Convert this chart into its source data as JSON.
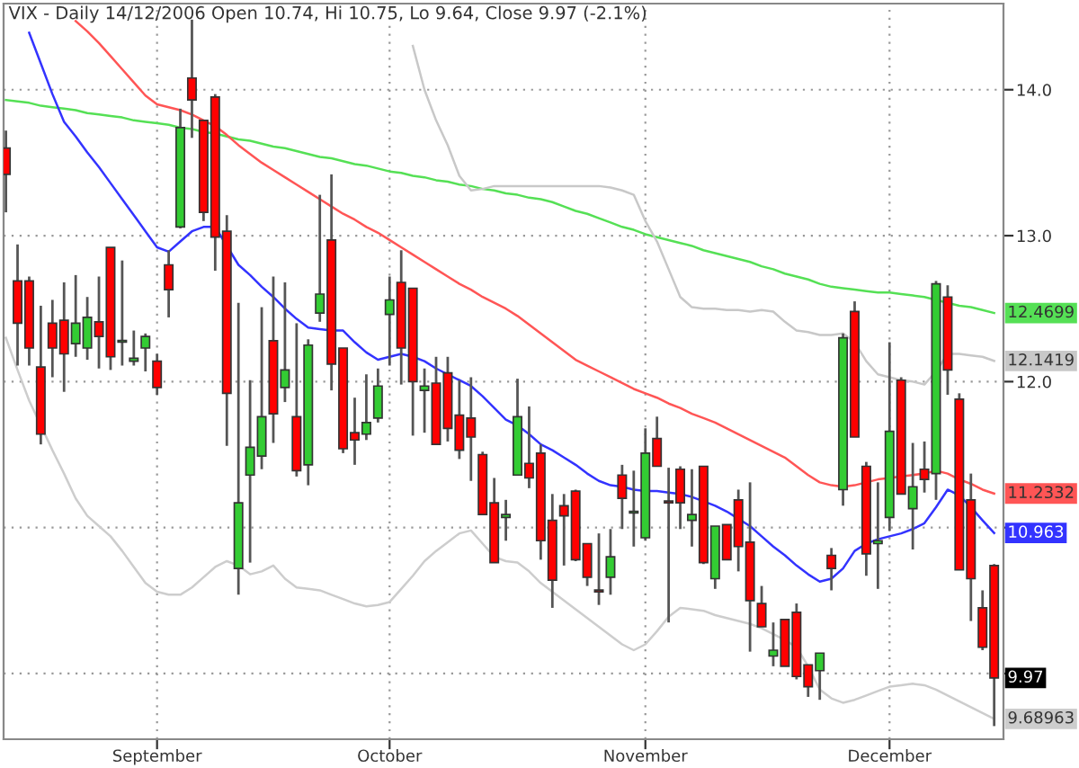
{
  "chart_data": {
    "type": "candlestick",
    "title": "VIX - Daily 14/12/2006 Open 10.74, Hi 10.75, Lo 9.64, Close 9.97 (-2.1%)",
    "categories": [
      null,
      null,
      null,
      null,
      null,
      null,
      null,
      null,
      null,
      null,
      null,
      null,
      null,
      "September",
      null,
      null,
      null,
      null,
      null,
      null,
      null,
      null,
      null,
      null,
      null,
      null,
      null,
      null,
      null,
      null,
      null,
      null,
      null,
      "October",
      null,
      null,
      null,
      null,
      null,
      null,
      null,
      null,
      null,
      null,
      null,
      null,
      null,
      null,
      null,
      null,
      null,
      null,
      null,
      null,
      null,
      "November",
      null,
      null,
      null,
      null,
      null,
      null,
      null,
      null,
      null,
      null,
      null,
      null,
      null,
      null,
      null,
      null,
      null,
      null,
      null,
      null,
      "December",
      null,
      null,
      null,
      null,
      null,
      null,
      null,
      null,
      null
    ],
    "ohlc": [
      [
        13.6,
        13.72,
        13.16,
        13.42
      ],
      [
        12.69,
        12.94,
        12.11,
        12.4
      ],
      [
        12.69,
        12.72,
        12.11,
        12.23
      ],
      [
        12.1,
        12.52,
        11.57,
        11.64
      ],
      [
        12.4,
        12.56,
        12.03,
        12.23
      ],
      [
        12.42,
        12.68,
        11.93,
        12.19
      ],
      [
        12.26,
        12.73,
        12.17,
        12.4
      ],
      [
        12.23,
        12.58,
        12.15,
        12.44
      ],
      [
        12.41,
        12.72,
        12.09,
        12.31
      ],
      [
        12.92,
        12.92,
        12.08,
        12.17
      ],
      [
        12.27,
        12.83,
        12.11,
        12.28
      ],
      [
        12.14,
        12.35,
        12.11,
        12.16
      ],
      [
        12.23,
        12.33,
        12.07,
        12.31
      ],
      [
        12.14,
        12.19,
        11.91,
        11.96
      ],
      [
        12.8,
        12.9,
        12.44,
        12.63
      ],
      [
        13.06,
        13.87,
        13.05,
        13.74
      ],
      [
        14.08,
        14.48,
        13.67,
        13.93
      ],
      [
        13.79,
        13.79,
        13.1,
        13.16
      ],
      [
        13.95,
        13.97,
        12.76,
        12.99
      ],
      [
        13.03,
        13.14,
        11.56,
        11.92
      ],
      [
        10.72,
        12.54,
        10.54,
        11.17
      ],
      [
        11.36,
        12.01,
        10.76,
        11.55
      ],
      [
        11.49,
        12.51,
        11.4,
        11.76
      ],
      [
        12.28,
        12.72,
        11.58,
        11.78
      ],
      [
        11.96,
        12.68,
        11.86,
        12.08
      ],
      [
        11.76,
        12.4,
        11.35,
        11.39
      ],
      [
        11.43,
        12.29,
        11.29,
        12.25
      ],
      [
        12.47,
        13.28,
        12.41,
        12.6
      ],
      [
        12.97,
        13.42,
        11.94,
        12.12
      ],
      [
        12.23,
        12.23,
        11.51,
        11.54
      ],
      [
        11.65,
        11.89,
        11.43,
        11.6
      ],
      [
        11.64,
        12.05,
        11.6,
        11.72
      ],
      [
        11.75,
        12.09,
        11.72,
        11.97
      ],
      [
        12.46,
        12.72,
        12.11,
        12.56
      ],
      [
        12.68,
        12.9,
        11.98,
        12.23
      ],
      [
        12.64,
        12.64,
        11.63,
        12.0
      ],
      [
        11.94,
        12.09,
        11.65,
        11.97
      ],
      [
        11.99,
        12.17,
        11.57,
        11.57
      ],
      [
        12.06,
        12.17,
        11.59,
        11.68
      ],
      [
        11.77,
        12.01,
        11.47,
        11.53
      ],
      [
        11.75,
        12.03,
        11.32,
        11.62
      ],
      [
        11.5,
        11.52,
        11.09,
        11.09
      ],
      [
        11.17,
        11.34,
        10.76,
        10.76
      ],
      [
        11.07,
        11.19,
        10.91,
        11.09
      ],
      [
        11.36,
        12.02,
        11.36,
        11.76
      ],
      [
        11.44,
        11.83,
        11.27,
        11.34
      ],
      [
        11.51,
        11.57,
        10.78,
        10.91
      ],
      [
        11.05,
        11.23,
        10.45,
        10.64
      ],
      [
        11.15,
        11.23,
        10.74,
        11.08
      ],
      [
        11.25,
        11.26,
        10.77,
        10.78
      ],
      [
        10.89,
        10.89,
        10.6,
        10.66
      ],
      [
        10.57,
        10.96,
        10.47,
        10.56
      ],
      [
        10.66,
        10.99,
        10.54,
        10.8
      ],
      [
        11.36,
        11.43,
        10.99,
        11.2
      ],
      [
        11.1,
        11.39,
        10.87,
        11.11
      ],
      [
        10.93,
        11.68,
        10.91,
        11.51
      ],
      [
        11.61,
        11.76,
        11.42,
        11.42
      ],
      [
        11.18,
        11.41,
        10.35,
        11.17
      ],
      [
        11.4,
        11.42,
        10.99,
        11.17
      ],
      [
        11.05,
        11.4,
        10.87,
        11.09
      ],
      [
        11.42,
        11.42,
        10.75,
        10.76
      ],
      [
        10.65,
        11.01,
        10.58,
        11.01
      ],
      [
        11.02,
        11.02,
        10.78,
        10.78
      ],
      [
        11.19,
        11.26,
        10.7,
        10.87
      ],
      [
        10.9,
        11.31,
        10.15,
        10.5
      ],
      [
        10.48,
        10.6,
        10.32,
        10.32
      ],
      [
        10.12,
        10.35,
        10.05,
        10.16
      ],
      [
        10.37,
        10.37,
        10.05,
        10.05
      ],
      [
        10.42,
        10.48,
        9.96,
        9.98
      ],
      [
        10.06,
        10.06,
        9.84,
        9.91
      ],
      [
        10.02,
        10.14,
        9.82,
        10.14
      ],
      [
        10.81,
        10.86,
        10.57,
        10.72
      ],
      [
        11.26,
        12.33,
        11.15,
        12.3
      ],
      [
        12.48,
        12.55,
        11.62,
        11.62
      ],
      [
        11.42,
        11.45,
        10.67,
        10.82
      ],
      [
        10.89,
        11.31,
        10.58,
        10.91
      ],
      [
        11.07,
        12.27,
        10.98,
        11.66
      ],
      [
        12.01,
        12.03,
        11.23,
        11.23
      ],
      [
        11.13,
        11.58,
        10.85,
        11.28
      ],
      [
        11.4,
        11.59,
        11.24,
        11.33
      ],
      [
        11.37,
        12.69,
        11.19,
        12.67
      ],
      [
        12.58,
        12.66,
        11.91,
        12.08
      ],
      [
        11.88,
        11.92,
        10.71,
        10.71
      ],
      [
        11.19,
        11.37,
        10.36,
        10.65
      ],
      [
        10.45,
        10.57,
        10.16,
        10.18
      ],
      [
        10.74,
        10.75,
        9.64,
        9.97
      ]
    ],
    "colors": [
      "#ff0000",
      "#ff0000",
      "#ff0000",
      "#ff0000",
      "#ff0000",
      "#ff0000",
      "#33cc33",
      "#33cc33",
      "#ff0000",
      "#ff0000",
      "#33cc33",
      "#33cc33",
      "#33cc33",
      "#ff0000",
      "#ff0000",
      "#33cc33",
      "#ff0000",
      "#ff0000",
      "#ff0000",
      "#ff0000",
      "#33cc33",
      "#33cc33",
      "#33cc33",
      "#ff0000",
      "#33cc33",
      "#ff0000",
      "#33cc33",
      "#33cc33",
      "#ff0000",
      "#ff0000",
      "#ff0000",
      "#33cc33",
      "#33cc33",
      "#33cc33",
      "#ff0000",
      "#ff0000",
      "#33cc33",
      "#ff0000",
      "#ff0000",
      "#ff0000",
      "#ff0000",
      "#ff0000",
      "#ff0000",
      "#33cc33",
      "#33cc33",
      "#ff0000",
      "#ff0000",
      "#ff0000",
      "#ff0000",
      "#ff0000",
      "#ff0000",
      "#ff0000",
      "#33cc33",
      "#ff0000",
      "#33cc33",
      "#33cc33",
      "#ff0000",
      "#ff0000",
      "#ff0000",
      "#33cc33",
      "#ff0000",
      "#33cc33",
      "#ff0000",
      "#ff0000",
      "#ff0000",
      "#ff0000",
      "#33cc33",
      "#ff0000",
      "#ff0000",
      "#ff0000",
      "#33cc33",
      "#ff0000",
      "#33cc33",
      "#ff0000",
      "#ff0000",
      "#33cc33",
      "#33cc33",
      "#ff0000",
      "#33cc33",
      "#ff0000",
      "#33cc33",
      "#ff0000",
      "#ff0000",
      "#ff0000",
      "#ff0000",
      "#ff0000"
    ],
    "series": [
      {
        "type": "line",
        "color": "#55e055",
        "value_labels": [
          null,
          null,
          null,
          null,
          null,
          null,
          null,
          null,
          null,
          null,
          null,
          null,
          null,
          null,
          null,
          null,
          null,
          null,
          null,
          null,
          null,
          null,
          null,
          null,
          null,
          null,
          null,
          null,
          null,
          null,
          null,
          null,
          null,
          null,
          null,
          null,
          null,
          null,
          null,
          null,
          null,
          null,
          null,
          null,
          null,
          null,
          null,
          null,
          null,
          null,
          null,
          null,
          null,
          null,
          null,
          null,
          null,
          null,
          null,
          null,
          null,
          null,
          null,
          null,
          null,
          null,
          null,
          null,
          null,
          null,
          null,
          null,
          null,
          null,
          null,
          null,
          null,
          null,
          null,
          null,
          null,
          null,
          null,
          null,
          null,
          "12.4699"
        ],
        "values": [
          13.93,
          13.92,
          13.91,
          13.89,
          13.88,
          13.87,
          13.86,
          13.84,
          13.83,
          13.82,
          13.81,
          13.79,
          13.78,
          13.77,
          13.76,
          13.74,
          13.73,
          13.71,
          13.7,
          13.68,
          13.66,
          13.65,
          13.63,
          13.61,
          13.6,
          13.58,
          13.56,
          13.54,
          13.53,
          13.51,
          13.49,
          13.48,
          13.46,
          13.44,
          13.43,
          13.41,
          13.4,
          13.38,
          13.37,
          13.35,
          13.34,
          13.32,
          13.31,
          13.29,
          13.28,
          13.26,
          13.25,
          13.23,
          13.2,
          13.17,
          13.15,
          13.12,
          13.09,
          13.06,
          13.04,
          13.01,
          12.99,
          12.97,
          12.95,
          12.93,
          12.9,
          12.88,
          12.86,
          12.84,
          12.82,
          12.79,
          12.77,
          12.74,
          12.72,
          12.7,
          12.67,
          12.65,
          12.64,
          12.63,
          12.62,
          12.61,
          12.61,
          12.6,
          12.59,
          12.58,
          12.56,
          12.54,
          12.52,
          12.51,
          12.49,
          12.4699
        ]
      },
      {
        "type": "line",
        "color": "#c8c8c8",
        "value_labels": [
          null,
          null,
          null,
          null,
          null,
          null,
          null,
          null,
          null,
          null,
          null,
          null,
          null,
          null,
          null,
          null,
          null,
          null,
          null,
          null,
          null,
          null,
          null,
          null,
          null,
          null,
          null,
          null,
          null,
          null,
          null,
          null,
          null,
          null,
          null,
          null,
          null,
          null,
          null,
          null,
          null,
          null,
          null,
          null,
          null,
          null,
          null,
          null,
          null,
          null,
          null,
          null,
          null,
          null,
          null,
          null,
          null,
          null,
          null,
          null,
          null,
          null,
          null,
          null,
          null,
          null,
          null,
          null,
          null,
          null,
          null,
          null,
          null,
          null,
          null,
          null,
          null,
          null,
          null,
          null,
          null,
          null,
          null,
          null,
          null,
          "12.1419"
        ],
        "values": [
          null,
          null,
          null,
          null,
          null,
          null,
          null,
          null,
          null,
          null,
          null,
          null,
          null,
          null,
          null,
          null,
          null,
          null,
          null,
          null,
          null,
          null,
          null,
          null,
          null,
          null,
          null,
          null,
          null,
          null,
          null,
          null,
          null,
          null,
          null,
          14.3,
          14.0,
          13.79,
          13.62,
          13.41,
          13.31,
          13.32,
          13.34,
          13.34,
          13.34,
          13.34,
          13.34,
          13.34,
          13.34,
          13.34,
          13.34,
          13.34,
          13.33,
          13.31,
          13.28,
          13.1,
          12.96,
          12.77,
          12.58,
          12.51,
          12.5,
          12.5,
          12.49,
          12.49,
          12.48,
          12.49,
          12.48,
          12.41,
          12.35,
          12.34,
          12.32,
          12.32,
          12.33,
          12.27,
          12.14,
          12.05,
          12.03,
          12.01,
          12.0,
          11.98,
          12.07,
          12.19,
          12.19,
          12.18,
          12.17,
          12.1419
        ]
      },
      {
        "type": "line",
        "color": "#ff5555",
        "value_labels": [
          null,
          null,
          null,
          null,
          null,
          null,
          null,
          null,
          null,
          null,
          null,
          null,
          null,
          null,
          null,
          null,
          null,
          null,
          null,
          null,
          null,
          null,
          null,
          null,
          null,
          null,
          null,
          null,
          null,
          null,
          null,
          null,
          null,
          null,
          null,
          null,
          null,
          null,
          null,
          null,
          null,
          null,
          null,
          null,
          null,
          null,
          null,
          null,
          null,
          null,
          null,
          null,
          null,
          null,
          null,
          null,
          null,
          null,
          null,
          null,
          null,
          null,
          null,
          null,
          null,
          null,
          null,
          null,
          null,
          null,
          null,
          null,
          null,
          null,
          null,
          null,
          null,
          null,
          null,
          null,
          null,
          null,
          null,
          null,
          null,
          "11.2332"
        ],
        "values": [
          null,
          null,
          null,
          null,
          null,
          null,
          14.47,
          14.4,
          14.32,
          14.23,
          14.14,
          14.05,
          13.96,
          13.9,
          13.88,
          13.86,
          13.83,
          13.79,
          13.75,
          13.69,
          13.62,
          13.56,
          13.5,
          13.45,
          13.4,
          13.35,
          13.3,
          13.25,
          13.2,
          13.15,
          13.11,
          13.06,
          13.02,
          12.97,
          12.92,
          12.87,
          12.82,
          12.77,
          12.72,
          12.67,
          12.63,
          12.58,
          12.54,
          12.5,
          12.45,
          12.39,
          12.33,
          12.27,
          12.21,
          12.15,
          12.11,
          12.07,
          12.03,
          11.99,
          11.95,
          11.92,
          11.89,
          11.85,
          11.82,
          11.78,
          11.75,
          11.72,
          11.68,
          11.64,
          11.6,
          11.56,
          11.52,
          11.48,
          11.42,
          11.36,
          11.31,
          11.29,
          11.28,
          11.29,
          11.31,
          11.33,
          11.34,
          11.35,
          11.36,
          11.37,
          11.39,
          11.37,
          11.33,
          11.3,
          11.26,
          11.2332
        ]
      },
      {
        "type": "line",
        "color": "#3333ff",
        "value_labels": [
          null,
          null,
          null,
          null,
          null,
          null,
          null,
          null,
          null,
          null,
          null,
          null,
          null,
          null,
          null,
          null,
          null,
          null,
          null,
          null,
          null,
          null,
          null,
          null,
          null,
          null,
          null,
          null,
          null,
          null,
          null,
          null,
          null,
          null,
          null,
          null,
          null,
          null,
          null,
          null,
          null,
          null,
          null,
          null,
          null,
          null,
          null,
          null,
          null,
          null,
          null,
          null,
          null,
          null,
          null,
          null,
          null,
          null,
          null,
          null,
          null,
          null,
          null,
          null,
          null,
          null,
          null,
          null,
          null,
          null,
          null,
          null,
          null,
          null,
          null,
          null,
          null,
          null,
          null,
          null,
          null,
          null,
          null,
          null,
          null,
          "10.963"
        ],
        "values": [
          null,
          null,
          14.39,
          14.18,
          13.97,
          13.78,
          13.68,
          13.57,
          13.47,
          13.36,
          13.25,
          13.14,
          13.03,
          12.92,
          12.89,
          12.96,
          13.03,
          13.06,
          13.06,
          12.93,
          12.8,
          12.73,
          12.65,
          12.58,
          12.5,
          12.43,
          12.37,
          12.36,
          12.35,
          12.35,
          12.27,
          12.2,
          12.15,
          12.17,
          12.19,
          12.17,
          12.14,
          12.09,
          12.05,
          12.01,
          11.97,
          11.9,
          11.82,
          11.74,
          11.7,
          11.64,
          11.57,
          11.53,
          11.48,
          11.43,
          11.37,
          11.32,
          11.29,
          11.28,
          11.26,
          11.25,
          11.25,
          11.24,
          11.23,
          11.21,
          11.18,
          11.15,
          11.11,
          11.06,
          11.01,
          10.94,
          10.87,
          10.81,
          10.74,
          10.68,
          10.63,
          10.65,
          10.72,
          10.84,
          10.89,
          10.92,
          10.94,
          10.96,
          10.99,
          11.03,
          11.14,
          11.26,
          11.22,
          11.14,
          11.05,
          10.963
        ]
      },
      {
        "type": "line",
        "color": "#cdcdcd",
        "value_labels": [
          null,
          null,
          null,
          null,
          null,
          null,
          null,
          null,
          null,
          null,
          null,
          null,
          null,
          null,
          null,
          null,
          null,
          null,
          null,
          null,
          null,
          null,
          null,
          null,
          null,
          null,
          null,
          null,
          null,
          null,
          null,
          null,
          null,
          null,
          null,
          null,
          null,
          null,
          null,
          null,
          null,
          null,
          null,
          null,
          null,
          null,
          null,
          null,
          null,
          null,
          null,
          null,
          null,
          null,
          null,
          null,
          null,
          null,
          null,
          null,
          null,
          null,
          null,
          null,
          null,
          null,
          null,
          null,
          null,
          null,
          null,
          null,
          null,
          null,
          null,
          null,
          null,
          null,
          null,
          null,
          null,
          null,
          null,
          null,
          null,
          "9.68963"
        ],
        "values": [
          12.3,
          12.08,
          11.87,
          11.7,
          11.53,
          11.37,
          11.2,
          11.08,
          11.01,
          10.94,
          10.84,
          10.73,
          10.62,
          10.56,
          10.54,
          10.54,
          10.59,
          10.66,
          10.73,
          10.77,
          10.74,
          10.68,
          10.7,
          10.74,
          10.65,
          10.59,
          10.58,
          10.57,
          10.54,
          10.51,
          10.48,
          10.46,
          10.47,
          10.49,
          10.58,
          10.67,
          10.77,
          10.84,
          10.9,
          10.96,
          10.98,
          10.89,
          10.8,
          10.77,
          10.76,
          10.7,
          10.62,
          10.56,
          10.5,
          10.44,
          10.38,
          10.32,
          10.26,
          10.2,
          10.16,
          10.2,
          10.29,
          10.39,
          10.45,
          10.44,
          10.43,
          10.4,
          10.38,
          10.36,
          10.34,
          10.31,
          10.27,
          10.23,
          10.18,
          10.05,
          9.89,
          9.83,
          9.8,
          9.82,
          9.85,
          9.88,
          9.91,
          9.92,
          9.93,
          9.92,
          9.89,
          9.85,
          9.81,
          9.77,
          9.73,
          9.68963
        ]
      }
    ],
    "ylim": [
      9.55,
      14.59
    ],
    "yticks": [
      {
        "value": 10,
        "label": null
      },
      {
        "value": 11,
        "label": null
      },
      {
        "value": 12,
        "label": "12.0"
      },
      {
        "value": 13,
        "label": "13.0"
      },
      {
        "value": 14,
        "label": "14.0"
      }
    ],
    "grid": true,
    "value_labels": [
      null,
      null,
      null,
      null,
      null,
      null,
      null,
      null,
      null,
      null,
      null,
      null,
      null,
      null,
      null,
      null,
      null,
      null,
      null,
      null,
      null,
      null,
      null,
      null,
      null,
      null,
      null,
      null,
      null,
      null,
      null,
      null,
      null,
      null,
      null,
      null,
      null,
      null,
      null,
      null,
      null,
      null,
      null,
      null,
      null,
      null,
      null,
      null,
      null,
      null,
      null,
      null,
      null,
      null,
      null,
      null,
      null,
      null,
      null,
      null,
      null,
      null,
      null,
      null,
      null,
      null,
      null,
      null,
      null,
      null,
      null,
      null,
      null,
      null,
      null,
      null,
      null,
      null,
      null,
      null,
      null,
      null,
      null,
      null,
      null,
      "9.97"
    ]
  }
}
